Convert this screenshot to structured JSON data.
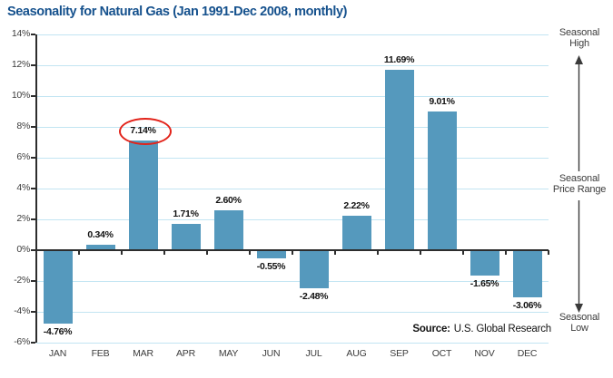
{
  "page": {
    "title": "Seasonality for Natural Gas (Jan 1991-Dec 2008, monthly)"
  },
  "source": {
    "label": "Source:",
    "text": "U.S. Global Research"
  },
  "side_labels": {
    "high": "Seasonal\nHigh",
    "range": "Seasonal\nPrice Range",
    "low": "Seasonal\nLow"
  },
  "chart_data": {
    "type": "bar",
    "title": "Seasonality for Natural Gas (Jan 1991-Dec 2008, monthly)",
    "categories": [
      "JAN",
      "FEB",
      "MAR",
      "APR",
      "MAY",
      "JUN",
      "JUL",
      "AUG",
      "SEP",
      "OCT",
      "NOV",
      "DEC"
    ],
    "values": [
      -4.76,
      0.34,
      7.14,
      1.71,
      2.6,
      -0.55,
      -2.48,
      2.22,
      11.69,
      9.01,
      -1.65,
      -3.06
    ],
    "value_labels": [
      "-4.76%",
      "0.34%",
      "7.14%",
      "1.71%",
      "2.60%",
      "-0.55%",
      "-2.48%",
      "2.22%",
      "11.69%",
      "9.01%",
      "-1.65%",
      "-3.06%"
    ],
    "xlabel": "",
    "ylabel": "",
    "ylim": [
      -6,
      14
    ],
    "yticks": [
      14,
      12,
      10,
      8,
      6,
      4,
      2,
      0,
      -2,
      -4,
      -6
    ],
    "ytick_labels": [
      "14%",
      "12%",
      "10%",
      "8%",
      "6%",
      "4%",
      "2%",
      "0%",
      "-2%",
      "-4%",
      "-6%"
    ],
    "grid": true,
    "legend": false,
    "highlight": {
      "index": 2,
      "label": "7.14%",
      "shape": "red-ellipse"
    },
    "colors": {
      "bar": "#5599BD",
      "gridline": "#C2E5F2",
      "axis": "#2D2D2D",
      "title": "#15518D",
      "highlight": "#E2231A",
      "label": "#111111",
      "tick_text": "#3C3C3C"
    }
  }
}
